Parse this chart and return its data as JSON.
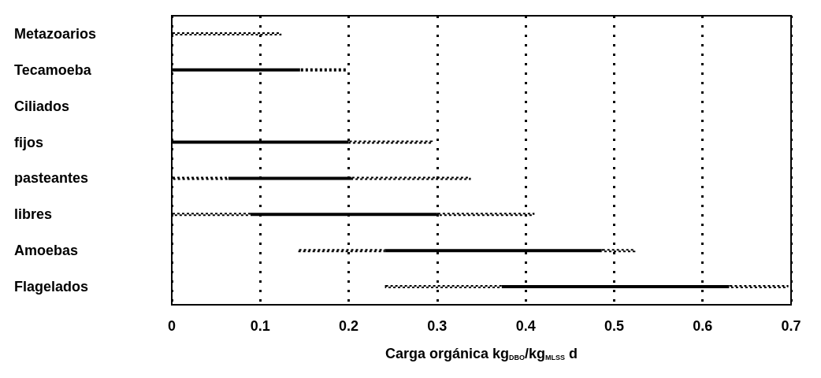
{
  "chart_data": {
    "type": "bar",
    "orientation": "horizontal",
    "xlabel": "Carga orgánica kg$_{DBO}$/kg$_{MLSS}$ d",
    "categories": [
      "Metazoarios",
      "Tecamoeba",
      "Ciliados",
      "fijos",
      "pasteantes",
      "libres",
      "Amoebas",
      "Flagelados"
    ],
    "series": [
      {
        "color": "#000000",
        "line_style": "dotted",
        "base": [
          0,
          null,
          null,
          null,
          0,
          0,
          0.143,
          0.241
        ],
        "values": [
          0.124,
          null,
          null,
          null,
          0.064,
          0.089,
          0.098,
          0.132
        ]
      },
      {
        "color": "#000000",
        "line_style": "solid",
        "base": [
          null,
          0,
          null,
          0,
          0.064,
          0.089,
          0.241,
          0.373
        ],
        "values": [
          null,
          0.145,
          null,
          0.2,
          0.139,
          0.211,
          0.245,
          0.257
        ]
      },
      {
        "color": "#000000",
        "line_style": "dotted",
        "base": [
          null,
          0.145,
          null,
          0.2,
          0.203,
          0.3,
          0.486,
          0.63
        ],
        "values": [
          null,
          0.053,
          null,
          0.095,
          0.135,
          0.11,
          0.038,
          0.067
        ]
      }
    ],
    "xlim": [
      0,
      0.7
    ],
    "xticks": [
      0,
      0.1,
      0.2,
      0.3,
      0.4,
      0.5,
      0.6,
      0.7
    ],
    "grid": "x"
  }
}
